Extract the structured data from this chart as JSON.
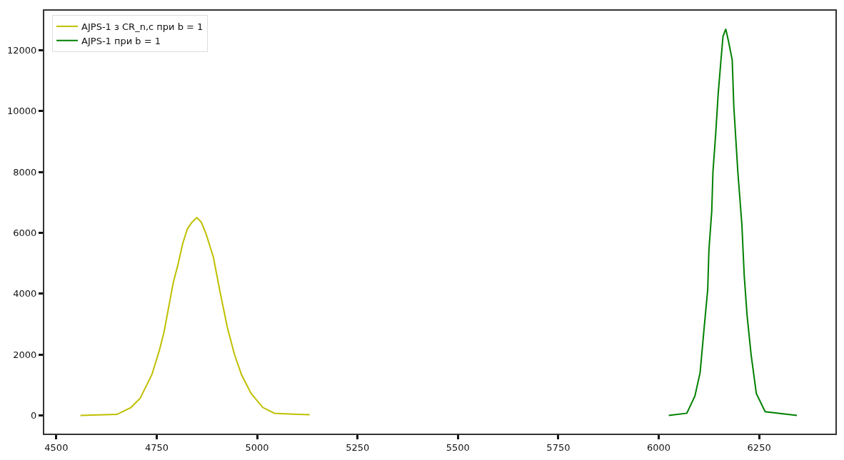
{
  "chart_data": {
    "type": "line",
    "series": [
      {
        "name": "AJPS-1 з CR_n,c при b = 1",
        "color": "#bfbf00",
        "x": [
          4560,
          4651,
          4686,
          4709,
          4738,
          4756,
          4768,
          4779,
          4791,
          4803,
          4815,
          4826,
          4838,
          4850,
          4861,
          4873,
          4891,
          4908,
          4926,
          4943,
          4961,
          4985,
          5014,
          5043,
          5090,
          5131
        ],
        "values": [
          0,
          30,
          260,
          570,
          1340,
          2110,
          2730,
          3500,
          4350,
          4960,
          5660,
          6120,
          6350,
          6500,
          6350,
          5960,
          5200,
          4040,
          2880,
          2030,
          1340,
          720,
          260,
          70,
          40,
          20
        ]
      },
      {
        "name": "AJPS-1 при b = 1",
        "color": "#008000",
        "x": [
          6025,
          6070,
          6090,
          6103,
          6113,
          6122,
          6125,
          6132,
          6135,
          6142,
          6148,
          6155,
          6160,
          6167,
          6174,
          6183,
          6187,
          6197,
          6207,
          6213,
          6220,
          6230,
          6243,
          6265,
          6344
        ],
        "values": [
          0,
          70,
          630,
          1400,
          2860,
          4140,
          5430,
          6710,
          8000,
          9280,
          10560,
          11680,
          12450,
          12700,
          12280,
          11680,
          10140,
          8000,
          6280,
          4570,
          3290,
          2000,
          720,
          120,
          0
        ]
      }
    ],
    "xlim": [
      4470,
      6440
    ],
    "xticks": [
      4500,
      4750,
      5000,
      5250,
      5500,
      5750,
      6000,
      6250
    ],
    "ylim": [
      -600,
      13300
    ],
    "yticks": [
      0,
      2000,
      4000,
      6000,
      8000,
      10000,
      12000
    ],
    "legend": "top left"
  }
}
